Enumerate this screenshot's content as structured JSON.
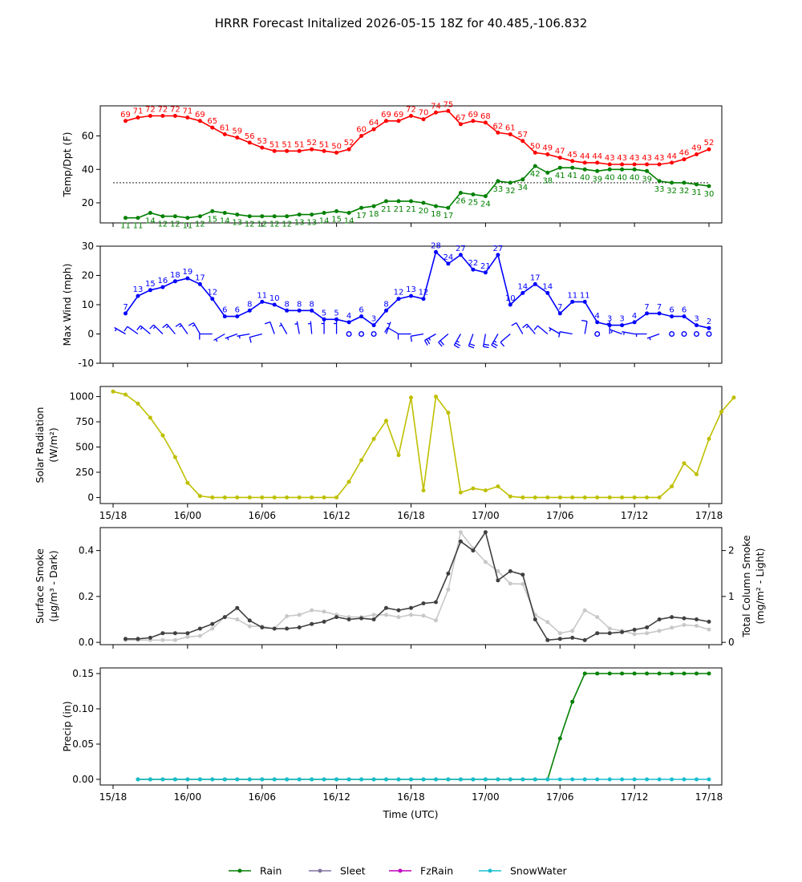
{
  "title": "HRRR Forecast Initalized 2026-05-15 18Z for 40.485,-106.832",
  "time_axis": {
    "label": "Time (UTC)",
    "ticks": [
      "15/18",
      "16/00",
      "16/06",
      "16/12",
      "16/18",
      "17/00",
      "17/06",
      "17/12",
      "17/18"
    ]
  },
  "legend": {
    "placement": "bottom-center",
    "items": [
      {
        "name": "Rain",
        "color": "#008000"
      },
      {
        "name": "Sleet",
        "color": "#8070a0"
      },
      {
        "name": "FzRain",
        "color": "#c000c0"
      },
      {
        "name": "SnowWater",
        "color": "#17becf"
      }
    ]
  },
  "chart_data": [
    {
      "type": "line",
      "ylabel": "Temp/Dpt (F)",
      "hours": [
        1,
        48
      ],
      "ylim": [
        8,
        78
      ],
      "yticks": [
        20,
        40,
        60
      ],
      "reference_line": 32,
      "series": [
        {
          "key": "temp",
          "color": "#ff0000",
          "values": [
            69,
            71,
            72,
            72,
            72,
            71,
            69,
            65,
            61,
            59,
            56,
            53,
            51,
            51,
            51,
            52,
            51,
            50,
            52,
            60,
            64,
            69,
            69,
            72,
            70,
            74,
            75,
            67,
            69,
            68,
            62,
            61,
            57,
            50,
            49,
            47,
            45,
            44,
            44,
            43,
            43,
            43,
            43,
            43,
            44,
            46,
            49,
            52
          ]
        },
        {
          "key": "dewpoint",
          "color": "#008000",
          "values": [
            11,
            11,
            14,
            12,
            12,
            11,
            12,
            15,
            14,
            13,
            12,
            12,
            12,
            12,
            13,
            13,
            14,
            15,
            14,
            17,
            18,
            21,
            21,
            21,
            20,
            18,
            17,
            26,
            25,
            24,
            33,
            32,
            34,
            42,
            38,
            41,
            41,
            40,
            39,
            40,
            40,
            40,
            39,
            33,
            32,
            32,
            31,
            30
          ]
        }
      ]
    },
    {
      "type": "line",
      "ylabel": "Max Wind (mph)",
      "hours": [
        1,
        48
      ],
      "ylim": [
        -10,
        30
      ],
      "yticks": [
        -10,
        0,
        10,
        20,
        30
      ],
      "series": [
        {
          "key": "wind",
          "color": "#0000ff",
          "values": [
            7,
            13,
            15,
            16,
            18,
            19,
            17,
            12,
            6,
            6,
            8,
            11,
            10,
            8,
            8,
            8,
            5,
            5,
            4,
            6,
            3,
            8,
            12,
            13,
            12,
            28,
            24,
            27,
            22,
            21,
            27,
            10,
            14,
            17,
            14,
            7,
            11,
            11,
            4,
            3,
            3,
            4,
            7,
            7,
            6,
            6,
            3,
            2
          ]
        }
      ],
      "wind_dir_deg": [
        300,
        305,
        310,
        315,
        320,
        325,
        330,
        270,
        240,
        250,
        260,
        255,
        340,
        330,
        350,
        355,
        0,
        0,
        null,
        null,
        null,
        20,
        300,
        270,
        260,
        240,
        230,
        210,
        200,
        190,
        210,
        230,
        330,
        320,
        310,
        300,
        280,
        10,
        null,
        0,
        290,
        280,
        270,
        250,
        null,
        null,
        null,
        null
      ]
    },
    {
      "type": "line",
      "ylabel": "Solar Radiation (W/m²)",
      "hours": [
        0,
        48
      ],
      "ylim": [
        -60,
        1100
      ],
      "yticks": [
        0,
        250,
        500,
        750,
        1000
      ],
      "series": [
        {
          "key": "solar",
          "color": "#bfbf00",
          "values": [
            1050,
            1020,
            930,
            790,
            615,
            400,
            145,
            15,
            0,
            0,
            0,
            0,
            0,
            0,
            0,
            0,
            0,
            0,
            0,
            155,
            370,
            580,
            760,
            420,
            990,
            70,
            1000,
            840,
            50,
            90,
            70,
            110,
            10,
            0,
            0,
            0,
            0,
            0,
            0,
            0,
            0,
            0,
            0,
            0,
            0,
            110,
            340,
            230,
            580,
            850,
            990
          ]
        }
      ]
    },
    {
      "type": "line",
      "ylabel": "Surface Smoke (μg/m³ - Dark)",
      "ylabel_right": "Total Column Smoke (mg/m² - Light)",
      "hours": [
        1,
        48
      ],
      "ylim": [
        -0.01,
        0.5
      ],
      "yticks": [
        0,
        0.2,
        0.4
      ],
      "ylim_right": [
        -0.05,
        2.5
      ],
      "yticks_right": [
        0,
        1,
        2
      ],
      "series": [
        {
          "key": "surface_smoke",
          "color": "#404040",
          "values": [
            0.015,
            0.015,
            0.02,
            0.04,
            0.04,
            0.04,
            0.06,
            0.08,
            0.11,
            0.15,
            0.095,
            0.065,
            0.06,
            0.06,
            0.065,
            0.08,
            0.09,
            0.11,
            0.1,
            0.105,
            0.1,
            0.15,
            0.14,
            0.15,
            0.17,
            0.175,
            0.3,
            0.44,
            0.4,
            0.48,
            0.27,
            0.31,
            0.295,
            0.1,
            0.01,
            0.015,
            0.02,
            0.01,
            0.04,
            0.04,
            0.045,
            0.055,
            0.065,
            0.1,
            0.11,
            0.105,
            0.1,
            0.09
          ]
        },
        {
          "key": "column_smoke",
          "color": "#c8c8c8",
          "axis": "right",
          "values": [
            0.05,
            0.05,
            0.05,
            0.05,
            0.05,
            0.12,
            0.14,
            0.3,
            0.55,
            0.5,
            0.35,
            0.35,
            0.3,
            0.57,
            0.6,
            0.7,
            0.67,
            0.6,
            0.55,
            0.55,
            0.6,
            0.6,
            0.55,
            0.6,
            0.58,
            0.48,
            1.15,
            2.4,
            2.05,
            1.75,
            1.55,
            1.28,
            1.27,
            0.6,
            0.44,
            0.2,
            0.25,
            0.7,
            0.55,
            0.3,
            0.25,
            0.18,
            0.2,
            0.25,
            0.32,
            0.38,
            0.36,
            0.28
          ]
        }
      ]
    },
    {
      "type": "line",
      "ylabel": "Precip (in)",
      "hours": [
        2,
        48
      ],
      "ylim": [
        -0.008,
        0.158
      ],
      "yticks": [
        0.0,
        0.05,
        0.1,
        0.15
      ],
      "series": [
        {
          "key": "rain",
          "color": "#008000",
          "values": [
            0,
            0,
            0,
            0,
            0,
            0,
            0,
            0,
            0,
            0,
            0,
            0,
            0,
            0,
            0,
            0,
            0,
            0,
            0,
            0,
            0,
            0,
            0,
            0,
            0,
            0,
            0,
            0,
            0,
            0,
            0,
            0,
            0,
            0,
            0.058,
            0.11,
            0.15,
            0.15,
            0.15,
            0.15,
            0.15,
            0.15,
            0.15,
            0.15,
            0.15,
            0.15,
            0.15
          ]
        },
        {
          "key": "snowwater",
          "color": "#17becf",
          "values": [
            0,
            0,
            0,
            0,
            0,
            0,
            0,
            0,
            0,
            0,
            0,
            0,
            0,
            0,
            0,
            0,
            0,
            0,
            0,
            0,
            0,
            0,
            0,
            0,
            0,
            0,
            0,
            0,
            0,
            0,
            0,
            0,
            0,
            0,
            0,
            0,
            0,
            0,
            0,
            0,
            0,
            0,
            0,
            0,
            0,
            0,
            0
          ]
        }
      ]
    }
  ]
}
